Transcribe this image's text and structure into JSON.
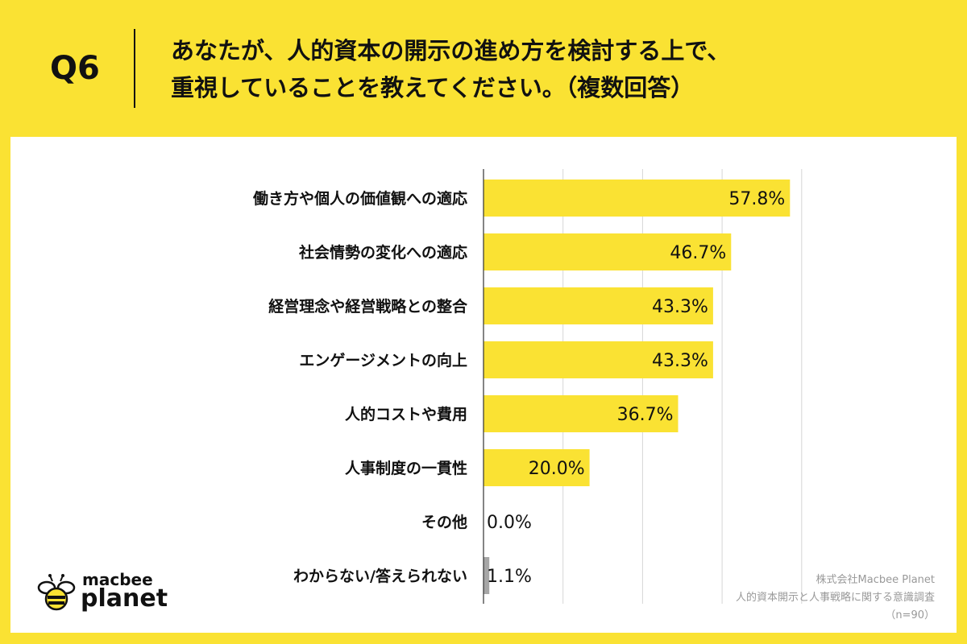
{
  "header": {
    "q_label": "Q6",
    "title_line1": "あなたが、人的資本の開示の進め方を検討する上で、",
    "title_line2": "重視していることを教えてください。（複数回答）"
  },
  "colors": {
    "background": "#fae233",
    "bar": "#fae233",
    "bar_small": "#a6a6a6",
    "card": "#ffffff"
  },
  "chart_data": {
    "type": "bar",
    "orientation": "horizontal",
    "categories": [
      "働き方や個人の価値観への適応",
      "社会情勢の変化への適応",
      "経営理念や経営戦略との整合",
      "エンゲージメントの向上",
      "人的コストや費用",
      "人事制度の一貫性",
      "その他",
      "わからない/答えられない"
    ],
    "values": [
      57.8,
      46.7,
      43.3,
      43.3,
      36.7,
      20.0,
      0.0,
      1.1
    ],
    "value_labels": [
      "57.8%",
      "46.7%",
      "43.3%",
      "43.3%",
      "36.7%",
      "20.0%",
      "0.0%",
      "1.1%"
    ],
    "xlim": [
      0,
      62
    ],
    "grid": true,
    "grid_ticks": [
      0,
      15,
      30,
      45,
      60
    ]
  },
  "logo": {
    "icon": "bee-icon",
    "text_top": "macbee",
    "text_bottom": "planet"
  },
  "source": {
    "line1": "株式会社Macbee Planet",
    "line2": "人的資本開示と人事戦略に関する意識調査",
    "line3": "（n=90）"
  }
}
